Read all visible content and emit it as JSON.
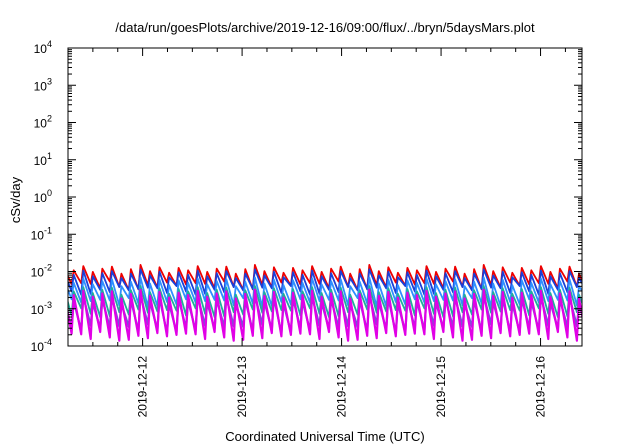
{
  "chart_data": {
    "type": "line",
    "title": "/data/run/goesPlots/archive/2019-12-16/09:00/flux/../bryn/5daysMars.plot",
    "xlabel": "Coordinated Universal Time (UTC)",
    "ylabel": "cSv/day",
    "yscale": "log",
    "ylim": [
      0.0001,
      10000
    ],
    "xlim": [
      "2019-12-11 06:00",
      "2019-12-16 10:00"
    ],
    "y_ticks": [
      {
        "base": "10",
        "exp": "-4"
      },
      {
        "base": "10",
        "exp": "-3"
      },
      {
        "base": "10",
        "exp": "-2"
      },
      {
        "base": "10",
        "exp": "-1"
      },
      {
        "base": "10",
        "exp": "0"
      },
      {
        "base": "10",
        "exp": "1"
      },
      {
        "base": "10",
        "exp": "2"
      },
      {
        "base": "10",
        "exp": "3"
      },
      {
        "base": "10",
        "exp": "4"
      }
    ],
    "x_ticks": [
      "2019-12-12",
      "2019-12-13",
      "2019-12-14",
      "2019-12-15",
      "2019-12-16"
    ],
    "grid": false,
    "legend": "none",
    "sawtooth_period_hours": 2.3,
    "series": [
      {
        "color": "#ee0000",
        "peak": 0.0125,
        "trough": 0.0045
      },
      {
        "color": "#1a3fd8",
        "peak": 0.0095,
        "trough": 0.0034
      },
      {
        "color": "#2f8fff",
        "peak": 0.0058,
        "trough": 0.0016
      },
      {
        "color": "#1fae9a",
        "peak": 0.0034,
        "trough": 0.00085
      },
      {
        "color": "#7a52d6",
        "peak": 0.0019,
        "trough": 0.00035
      },
      {
        "color": "#e100e6",
        "peak": 0.0027,
        "trough": 0.00022
      }
    ]
  }
}
